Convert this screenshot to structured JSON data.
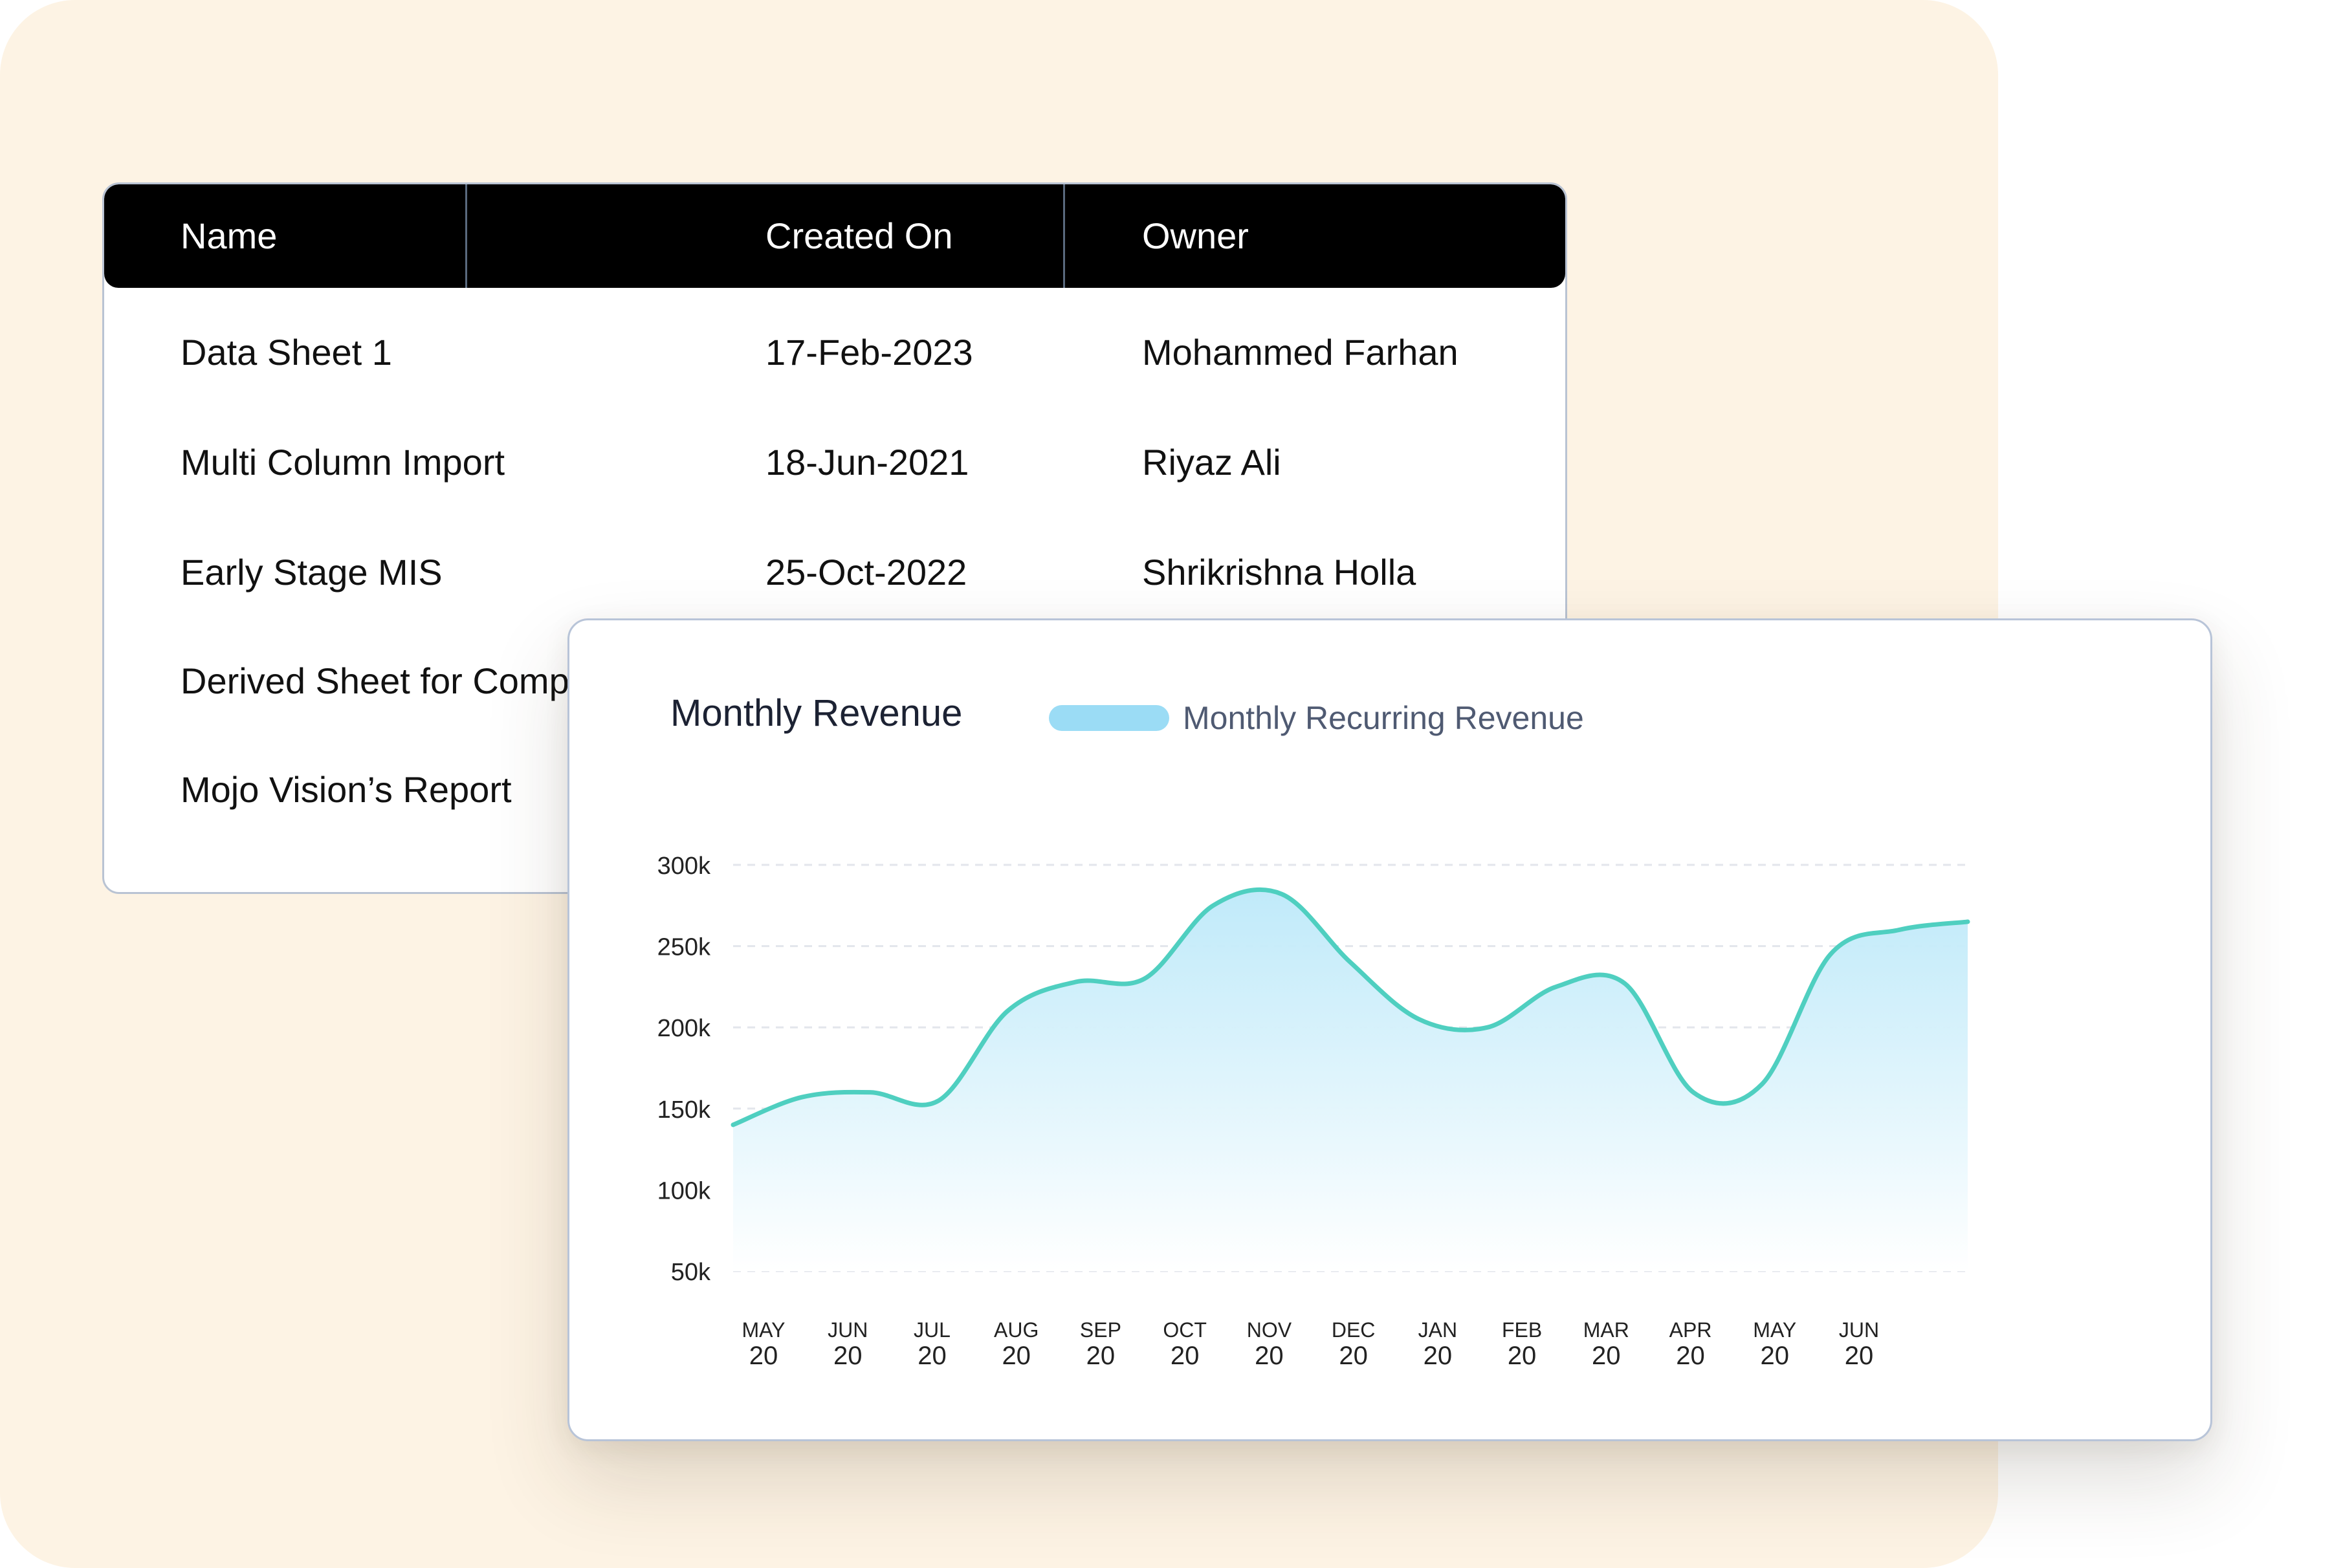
{
  "colors": {
    "background_panel": "#fdf3e4",
    "table_header_bg": "#000000",
    "line": "#4fcfc0",
    "area_top": "#c3ebf7",
    "legend_swatch": "#9bdcf5"
  },
  "table": {
    "headers": [
      "Name",
      "Created On",
      "Owner"
    ],
    "rows": [
      {
        "name": "Data Sheet 1",
        "created": "17-Feb-2023",
        "owner": "Mohammed Farhan"
      },
      {
        "name": "Multi Column Import",
        "created": "18-Jun-2021",
        "owner": "Riyaz Ali"
      },
      {
        "name": "Early Stage MIS",
        "created": "25-Oct-2022",
        "owner": "Shrikrishna Holla"
      },
      {
        "name": "Derived Sheet for Comp",
        "created": "",
        "owner": ""
      },
      {
        "name": "Mojo Vision’s Report",
        "created": "",
        "owner": ""
      }
    ]
  },
  "chart_data": {
    "type": "area",
    "title": "Monthly Revenue",
    "series": [
      {
        "name": "Monthly Recurring Revenue",
        "values": [
          140000,
          157000,
          160000,
          155000,
          210000,
          228000,
          230000,
          275000,
          282000,
          240000,
          205000,
          200000,
          225000,
          227000,
          160000,
          165000,
          245000,
          260000,
          265000
        ]
      }
    ],
    "x": [
      "MAY 20",
      "",
      "JUN 20",
      "JUL 20",
      "AUG 20",
      "SEP 20",
      "OCT 20",
      "",
      "NOV 20",
      "DEC 20",
      "JAN 20",
      "",
      "FEB 20",
      "MAR 20",
      "APR 20",
      "",
      "MAY 20",
      "",
      "JUN 20"
    ],
    "x_ticks": [
      {
        "month": "MAY",
        "year": "20"
      },
      {
        "month": "JUN",
        "year": "20"
      },
      {
        "month": "JUL",
        "year": "20"
      },
      {
        "month": "AUG",
        "year": "20"
      },
      {
        "month": "SEP",
        "year": "20"
      },
      {
        "month": "OCT",
        "year": "20"
      },
      {
        "month": "NOV",
        "year": "20"
      },
      {
        "month": "DEC",
        "year": "20"
      },
      {
        "month": "JAN",
        "year": "20"
      },
      {
        "month": "FEB",
        "year": "20"
      },
      {
        "month": "MAR",
        "year": "20"
      },
      {
        "month": "APR",
        "year": "20"
      },
      {
        "month": "MAY",
        "year": "20"
      },
      {
        "month": "JUN",
        "year": "20"
      }
    ],
    "y_ticks": [
      "300k",
      "250k",
      "200k",
      "150k",
      "100k",
      "50k"
    ],
    "ylim": [
      50000,
      300000
    ],
    "grid": true,
    "legend": "top-left"
  }
}
